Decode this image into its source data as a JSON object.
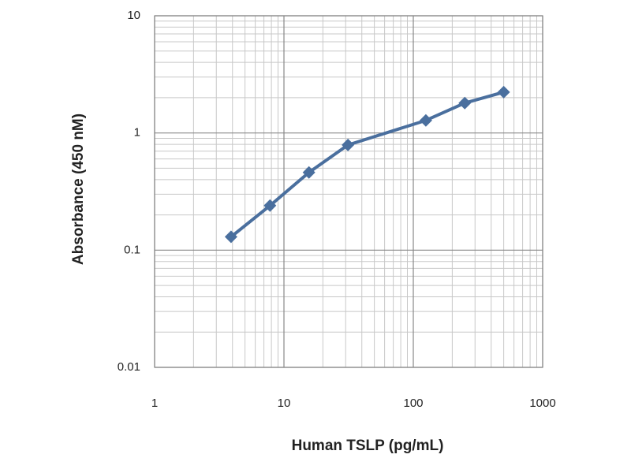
{
  "chart_data": {
    "type": "line",
    "x_label": "Human TSLP (pg/mL)",
    "y_label": "Absorbance (450 nM)",
    "x": [
      3.9,
      7.8,
      15.6,
      31.25,
      125,
      250,
      500
    ],
    "series": [
      {
        "color": "#4a6f9e",
        "values": [
          0.13,
          0.24,
          0.46,
          0.79,
          1.28,
          1.8,
          2.23
        ]
      }
    ],
    "xscale": "log",
    "yscale": "log",
    "xlim": [
      1,
      1000
    ],
    "ylim": [
      0.01,
      10
    ],
    "xticks": [
      1,
      10,
      100,
      1000
    ],
    "yticks": [
      0.01,
      0.1,
      1,
      10
    ],
    "grid": true,
    "minor_grid": true
  }
}
